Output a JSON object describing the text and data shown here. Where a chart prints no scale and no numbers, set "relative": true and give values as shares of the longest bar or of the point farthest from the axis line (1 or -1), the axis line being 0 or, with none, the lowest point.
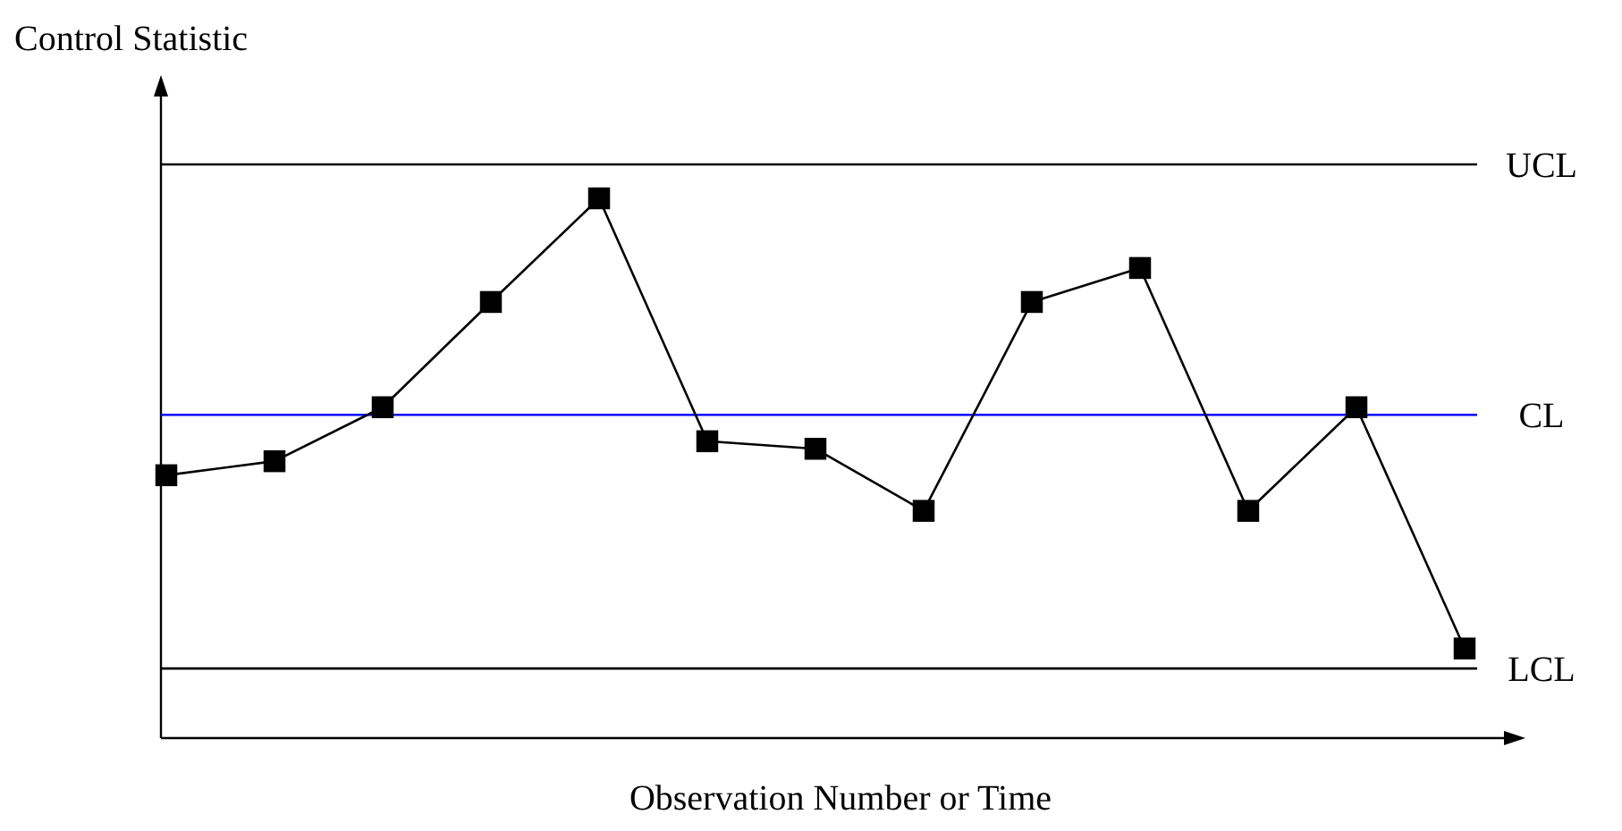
{
  "chart_data": {
    "type": "line",
    "relative": true,
    "xlabel": "Observation Number or Time",
    "ylabel": "Control Statistic",
    "categories": [
      null,
      null,
      null,
      null,
      null,
      null,
      null,
      null,
      null,
      null,
      null,
      null,
      null
    ],
    "series": [
      {
        "color": "#000000",
        "values": [
          0.487,
          0.513,
          0.613,
          0.808,
          1,
          0.55,
          0.536,
          0.421,
          0.808,
          0.871,
          0.421,
          0.613,
          0.166
        ]
      }
    ],
    "marker": "square",
    "line_style": "solid",
    "ref_lines": [
      {
        "axis": "y",
        "value": 1.063,
        "label": "UCL",
        "color": "#000000"
      },
      {
        "axis": "y",
        "value": 0.599,
        "label": "CL",
        "color": "#0000ff"
      },
      {
        "axis": "y",
        "value": 0.129,
        "label": "LCL",
        "color": "#000000"
      }
    ]
  }
}
